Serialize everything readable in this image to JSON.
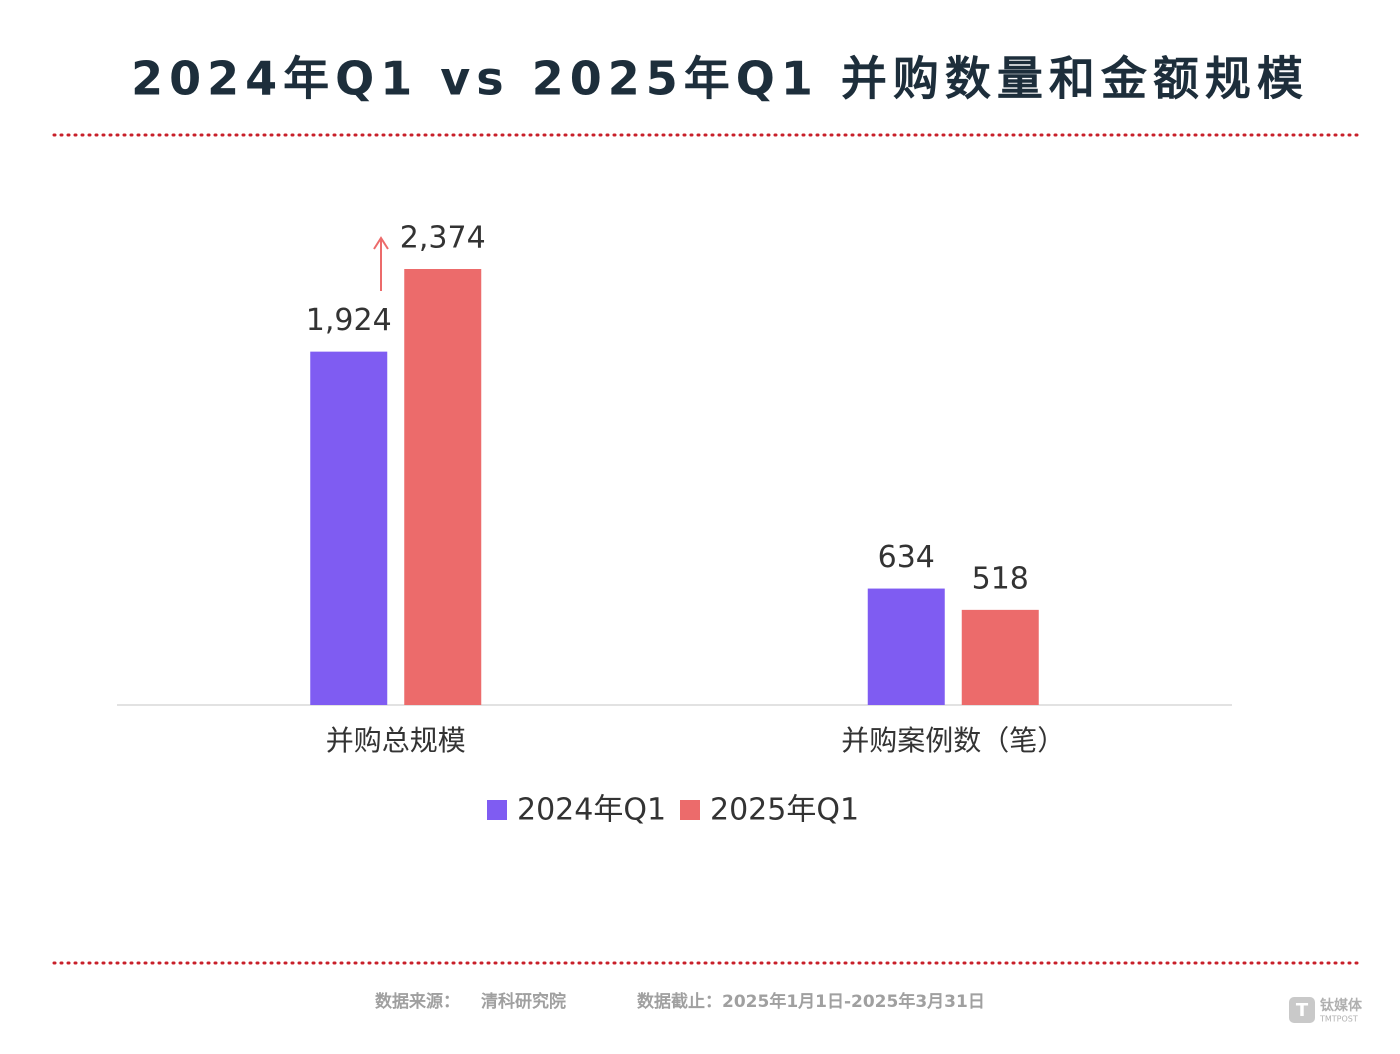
{
  "chart_data": {
    "type": "bar",
    "title": "2024年Q1 vs 2025年Q1 并购数量和金额规模",
    "categories": [
      "并购总规模",
      "并购案例数（笔）"
    ],
    "series": [
      {
        "name": "2024年Q1",
        "color": "#7f5cf2",
        "values": [
          1924,
          634
        ],
        "value_labels": [
          "1,924",
          "634"
        ]
      },
      {
        "name": "2025年Q1",
        "color": "#ec6b6b",
        "values": [
          2374,
          518
        ],
        "value_labels": [
          "2,374",
          "518"
        ]
      }
    ],
    "legend": "bottom"
  },
  "footer": {
    "source_label": "数据来源：",
    "source": "清科研究院",
    "date_range": "数据截止：2025年1月1日-2025年3月31日"
  },
  "logo": {
    "name": "钛媒体",
    "sub": "TMTPOST"
  }
}
